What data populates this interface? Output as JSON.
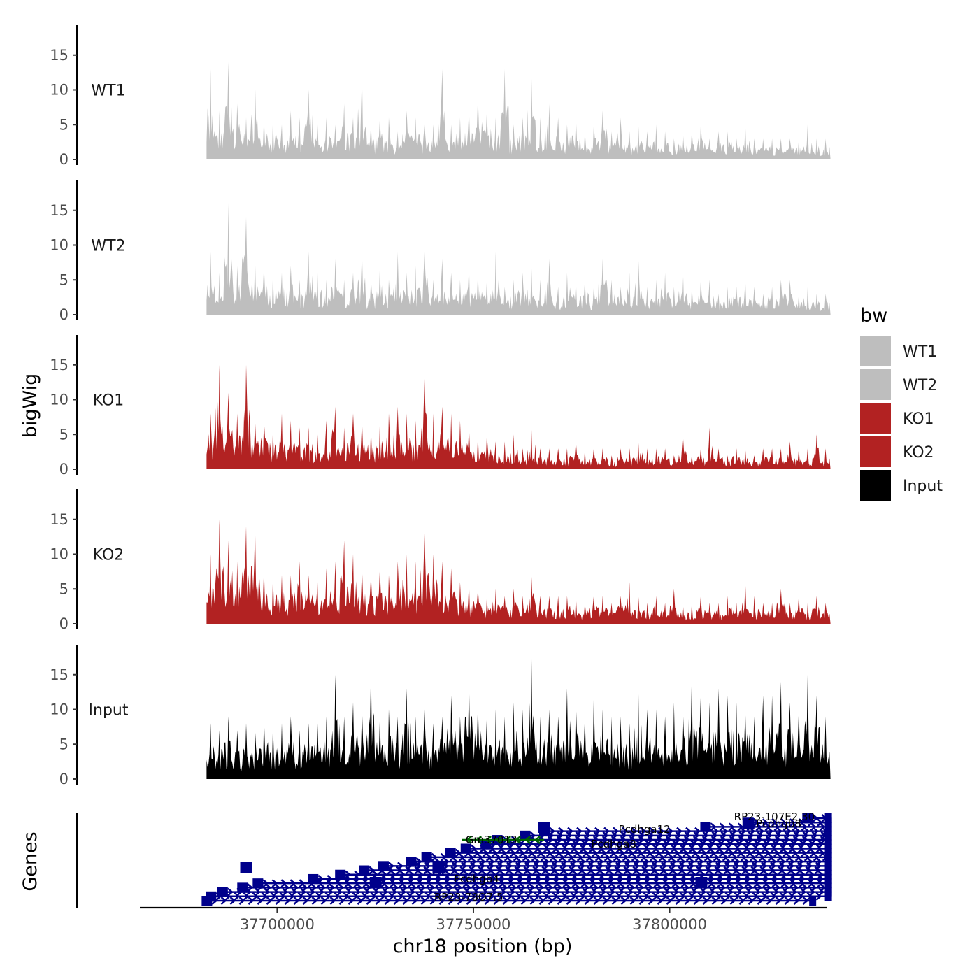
{
  "chart_data": {
    "type": "area",
    "title": "",
    "xlabel": "chr18 position (bp)",
    "ylabel": "bigWig",
    "genes_label": "Genes",
    "chromosome": "chr18",
    "xlim": [
      37665000,
      37840000
    ],
    "ylim": [
      0,
      19.5
    ],
    "x_ticks": [
      37700000,
      37750000,
      37800000
    ],
    "x_tick_labels": [
      "37700000",
      "37750000",
      "37800000"
    ],
    "y_ticks": [
      0,
      5,
      10,
      15
    ],
    "y_tick_labels": [
      "0",
      "5",
      "10",
      "15"
    ],
    "legend": {
      "title": "bw",
      "position": "right",
      "entries": [
        {
          "name": "WT1",
          "color": "#bebebe"
        },
        {
          "name": "WT2",
          "color": "#bebebe"
        },
        {
          "name": "KO1",
          "color": "#b22222"
        },
        {
          "name": "KO2",
          "color": "#b22222"
        },
        {
          "name": "Input",
          "color": "#000000"
        }
      ]
    },
    "series": [
      {
        "name": "WT1",
        "color": "#bebebe",
        "x_start": 37682000,
        "x_end": 37841000,
        "bins": 70,
        "values": [
          13,
          7,
          14,
          8,
          6,
          11,
          6,
          6,
          5,
          7,
          6,
          10,
          5,
          6,
          5,
          8,
          6,
          12,
          5,
          6,
          6,
          4,
          7,
          6,
          5,
          5,
          13,
          5,
          6,
          7,
          9,
          7,
          6,
          13,
          5,
          6,
          12,
          6,
          8,
          6,
          5,
          6,
          4,
          5,
          7,
          4,
          6,
          4,
          5,
          4,
          5,
          4,
          3,
          4,
          4,
          5,
          3,
          4,
          4,
          3,
          5,
          3,
          3,
          3,
          3,
          3,
          3,
          5,
          3,
          3
        ]
      },
      {
        "name": "WT2",
        "color": "#bebebe",
        "x_start": 37682000,
        "x_end": 37841000,
        "bins": 70,
        "values": [
          9,
          6,
          16,
          7,
          14,
          8,
          7,
          6,
          6,
          7,
          5,
          9,
          6,
          5,
          8,
          5,
          6,
          9,
          5,
          7,
          5,
          9,
          6,
          7,
          9,
          5,
          8,
          6,
          5,
          7,
          6,
          5,
          9,
          4,
          5,
          6,
          7,
          5,
          8,
          4,
          6,
          5,
          5,
          4,
          8,
          5,
          4,
          6,
          8,
          4,
          5,
          6,
          4,
          7,
          4,
          5,
          5,
          3,
          4,
          4,
          5,
          4,
          3,
          4,
          5,
          5,
          3,
          4,
          3,
          3
        ]
      },
      {
        "name": "KO1",
        "color": "#b22222",
        "x_start": 37682000,
        "x_end": 37841000,
        "bins": 70,
        "values": [
          8,
          15,
          11,
          8,
          15,
          7,
          7,
          6,
          8,
          7,
          6,
          6,
          5,
          7,
          9,
          6,
          8,
          7,
          6,
          7,
          8,
          9,
          8,
          7,
          13,
          8,
          9,
          8,
          7,
          6,
          5,
          5,
          4,
          4,
          5,
          3,
          6,
          3,
          3,
          3,
          3,
          4,
          3,
          3,
          3,
          2,
          3,
          3,
          4,
          3,
          3,
          3,
          2,
          5,
          2,
          3,
          6,
          3,
          2,
          3,
          3,
          2,
          3,
          3,
          3,
          4,
          3,
          3,
          5,
          3
        ]
      },
      {
        "name": "KO2",
        "color": "#b22222",
        "x_start": 37682000,
        "x_end": 37841000,
        "bins": 70,
        "values": [
          10,
          15,
          12,
          9,
          14,
          14,
          8,
          7,
          7,
          7,
          9,
          7,
          6,
          8,
          9,
          12,
          10,
          8,
          7,
          8,
          7,
          9,
          10,
          9,
          13,
          10,
          9,
          8,
          6,
          6,
          5,
          4,
          5,
          4,
          5,
          4,
          7,
          4,
          4,
          4,
          4,
          4,
          3,
          4,
          4,
          3,
          4,
          6,
          4,
          3,
          4,
          3,
          5,
          3,
          3,
          4,
          3,
          3,
          4,
          3,
          6,
          4,
          3,
          3,
          5,
          3,
          4,
          3,
          4,
          3
        ]
      },
      {
        "name": "Input",
        "color": "#000000",
        "x_start": 37682000,
        "x_end": 37841000,
        "bins": 70,
        "values": [
          8,
          7,
          9,
          7,
          8,
          7,
          9,
          8,
          8,
          9,
          7,
          8,
          8,
          9,
          15,
          9,
          11,
          10,
          16,
          9,
          10,
          9,
          13,
          9,
          10,
          8,
          9,
          12,
          9,
          14,
          11,
          9,
          10,
          9,
          11,
          10,
          18,
          9,
          10,
          9,
          13,
          11,
          9,
          12,
          10,
          9,
          9,
          8,
          13,
          10,
          10,
          9,
          11,
          10,
          15,
          12,
          11,
          13,
          12,
          11,
          10,
          9,
          12,
          12,
          14,
          11,
          10,
          15,
          12,
          9
        ]
      }
    ],
    "gene_track": {
      "strand_colors": {
        "plus": "#00008b",
        "minus": "#006400"
      },
      "labels": [
        "RP23-107E2.30",
        "Pcdhgb8",
        "Pcdhga12",
        "Pcdhga8",
        "Gm37013",
        "RP23-78O7.5",
        "Pcdhgb4"
      ],
      "plus_gene_starts": [
        37682000,
        37686000,
        37690000,
        37695000,
        37708000,
        37716000,
        37721000,
        37727000,
        37733000,
        37738000,
        37743000,
        37748000,
        37752000,
        37756000,
        37762000,
        37768000,
        37808000,
        37820000,
        37834000
      ],
      "minus_gene": {
        "name": "Gm37013",
        "start": 37747000,
        "end": 37768000
      }
    }
  }
}
